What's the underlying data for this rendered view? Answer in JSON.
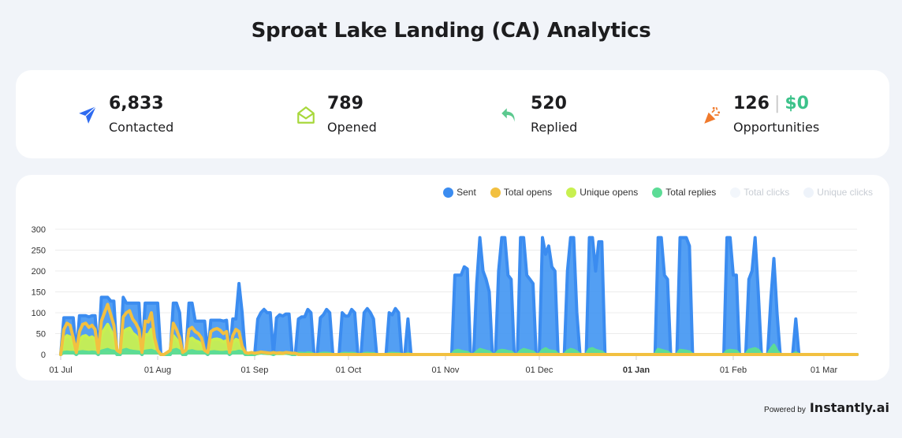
{
  "title": "Sproat Lake Landing (CA) Analytics",
  "stats": [
    {
      "value": "6,833",
      "label": "Contacted",
      "icon": "paper-plane-icon",
      "color": "#2f6bf0"
    },
    {
      "value": "789",
      "label": "Opened",
      "icon": "open-envelope-icon",
      "color": "#a8d83c"
    },
    {
      "value": "520",
      "label": "Replied",
      "icon": "reply-arrow-icon",
      "color": "#5cc98f"
    },
    {
      "value": "126",
      "separator": "|",
      "money": "$0",
      "label": "Opportunities",
      "icon": "party-popper-icon",
      "color": "#f07a2c"
    }
  ],
  "legend": [
    {
      "label": "Sent",
      "color": "#3b8cf0",
      "active": true
    },
    {
      "label": "Total opens",
      "color": "#f2c040",
      "active": true
    },
    {
      "label": "Unique opens",
      "color": "#c8f050",
      "active": true
    },
    {
      "label": "Total replies",
      "color": "#5cdc96",
      "active": true
    },
    {
      "label": "Total clicks",
      "color": "#f2f6fb",
      "active": false
    },
    {
      "label": "Unique clicks",
      "color": "#eef3fa",
      "active": false
    }
  ],
  "footer": {
    "powered_by": "Powered by",
    "brand": "Instantly.ai"
  },
  "chart_data": {
    "type": "area",
    "x_start": "01 Jul",
    "x_unit": "day",
    "num_days": 256,
    "ylim": [
      0,
      300
    ],
    "yticks": [
      0,
      50,
      100,
      150,
      200,
      250,
      300
    ],
    "xticks": [
      {
        "label": "01 Jul",
        "day": 0,
        "bold": false
      },
      {
        "label": "01 Aug",
        "day": 31,
        "bold": false
      },
      {
        "label": "01 Sep",
        "day": 62,
        "bold": false
      },
      {
        "label": "01 Oct",
        "day": 92,
        "bold": false
      },
      {
        "label": "01 Nov",
        "day": 123,
        "bold": false
      },
      {
        "label": "01 Dec",
        "day": 153,
        "bold": false
      },
      {
        "label": "01 Jan",
        "day": 184,
        "bold": true
      },
      {
        "label": "01 Feb",
        "day": 215,
        "bold": false
      },
      {
        "label": "01 Mar",
        "day": 244,
        "bold": false
      }
    ],
    "grid": true,
    "legend_position": "top-right",
    "series": [
      {
        "name": "Sent",
        "color": "#3b8cf0",
        "fill": "#4a9af2",
        "values": [
          0,
          88,
          88,
          88,
          88,
          0,
          93,
          93,
          93,
          90,
          93,
          93,
          0,
          137,
          137,
          137,
          128,
          128,
          0,
          0,
          137,
          123,
          123,
          123,
          123,
          123,
          0,
          123,
          123,
          123,
          123,
          123,
          0,
          0,
          0,
          0,
          123,
          123,
          100,
          0,
          0,
          123,
          123,
          80,
          80,
          80,
          80,
          0,
          82,
          82,
          82,
          82,
          80,
          82,
          0,
          85,
          85,
          170,
          100,
          0,
          0,
          0,
          0,
          85,
          100,
          108,
          100,
          100,
          0,
          88,
          95,
          92,
          97,
          97,
          0,
          0,
          85,
          90,
          90,
          108,
          100,
          0,
          0,
          88,
          95,
          108,
          100,
          0,
          0,
          0,
          100,
          92,
          92,
          108,
          100,
          0,
          0,
          100,
          110,
          100,
          85,
          0,
          0,
          0,
          0,
          100,
          95,
          110,
          100,
          0,
          0,
          85,
          0,
          0,
          0,
          0,
          0,
          0,
          0,
          0,
          0,
          0,
          0,
          0,
          0,
          0,
          190,
          190,
          190,
          210,
          205,
          0,
          0,
          170,
          280,
          200,
          180,
          150,
          0,
          0,
          200,
          280,
          280,
          190,
          180,
          0,
          0,
          280,
          280,
          190,
          180,
          170,
          0,
          0,
          280,
          240,
          260,
          210,
          200,
          0,
          0,
          0,
          200,
          280,
          280,
          100,
          0,
          0,
          0,
          280,
          280,
          200,
          270,
          270,
          0,
          0,
          0,
          0,
          0,
          0,
          0,
          0,
          0,
          0,
          0,
          0,
          0,
          0,
          0,
          0,
          0,
          280,
          280,
          190,
          180,
          0,
          0,
          0,
          280,
          280,
          280,
          260,
          0,
          0,
          0,
          0,
          0,
          0,
          0,
          0,
          0,
          0,
          0,
          280,
          280,
          190,
          190,
          0,
          0,
          0,
          180,
          200,
          280,
          150,
          0,
          0,
          0,
          130,
          230,
          100,
          0,
          0,
          0,
          0,
          0,
          85,
          0,
          0,
          0,
          0,
          0,
          0,
          0,
          0,
          0,
          0,
          0,
          0,
          0,
          0,
          0,
          0,
          0,
          0,
          0,
          0
        ]
      },
      {
        "name": "Unique opens",
        "color": "#c8f050",
        "fill": "#c8f050",
        "values": [
          0,
          36,
          45,
          42,
          24,
          3,
          33,
          43,
          45,
          39,
          42,
          36,
          3,
          48,
          60,
          72,
          57,
          42,
          6,
          3,
          54,
          60,
          63,
          51,
          45,
          36,
          3,
          48,
          47,
          60,
          24,
          6,
          0,
          0,
          3,
          6,
          45,
          36,
          24,
          3,
          6,
          36,
          39,
          33,
          30,
          24,
          6,
          3,
          33,
          36,
          37,
          35,
          30,
          33,
          3,
          27,
          36,
          33,
          12,
          3,
          2,
          3,
          2,
          2,
          4,
          3,
          2,
          2,
          3,
          2,
          2,
          2,
          3,
          2,
          2,
          2
        ]
      },
      {
        "name": "Total replies",
        "color": "#5cdc96",
        "fill": "#5cdc96",
        "values": [
          0,
          5,
          6,
          5,
          5,
          0,
          6,
          7,
          6,
          5,
          6,
          5,
          0,
          8,
          10,
          12,
          9,
          8,
          0,
          0,
          10,
          12,
          9,
          8,
          7,
          6,
          0,
          8,
          9,
          10,
          7,
          6,
          0,
          0,
          0,
          0,
          10,
          12,
          8,
          0,
          0,
          8,
          9,
          7,
          6,
          6,
          5,
          0,
          6,
          7,
          6,
          5,
          5,
          6,
          0,
          5,
          6,
          8,
          6,
          0,
          0,
          0,
          0,
          3,
          4,
          3,
          3,
          2,
          0,
          3,
          3,
          4,
          3,
          2,
          0,
          0,
          3,
          3,
          2,
          4,
          3,
          0,
          0,
          2,
          3,
          3,
          2,
          0,
          0,
          0,
          2,
          3,
          2,
          3,
          2,
          0,
          0,
          2,
          3,
          2,
          2,
          0,
          0,
          0,
          0,
          2,
          3,
          2,
          2,
          0,
          0,
          2,
          0,
          0,
          0,
          0,
          0,
          0,
          0,
          0,
          0,
          0,
          0,
          0,
          0,
          0,
          8,
          10,
          8,
          6,
          5,
          0,
          0,
          6,
          12,
          10,
          8,
          6,
          0,
          0,
          8,
          10,
          9,
          7,
          6,
          0,
          0,
          8,
          12,
          10,
          8,
          6,
          0,
          0,
          10,
          14,
          9,
          8,
          7,
          0,
          0,
          0,
          8,
          12,
          10,
          6,
          0,
          0,
          0,
          12,
          14,
          10,
          8,
          6,
          0,
          0,
          0,
          0,
          0,
          0,
          0,
          0,
          0,
          0,
          0,
          0,
          0,
          0,
          0,
          0,
          0,
          12,
          10,
          8,
          6,
          0,
          0,
          0,
          10,
          9,
          8,
          6,
          0,
          0,
          0,
          0,
          0,
          0,
          0,
          0,
          0,
          0,
          0,
          8,
          10,
          9,
          8,
          0,
          0,
          0,
          10,
          12,
          14,
          10,
          0,
          0,
          0,
          12,
          22,
          8,
          0,
          0,
          0,
          0,
          0,
          4
        ]
      },
      {
        "name": "Total opens",
        "color": "#f2c040",
        "fill": "none",
        "values": [
          0,
          60,
          75,
          70,
          40,
          5,
          55,
          72,
          75,
          65,
          70,
          60,
          5,
          80,
          100,
          120,
          95,
          70,
          10,
          5,
          90,
          100,
          105,
          85,
          75,
          60,
          5,
          80,
          78,
          100,
          40,
          10,
          0,
          0,
          5,
          10,
          75,
          60,
          40,
          5,
          10,
          60,
          65,
          55,
          50,
          40,
          10,
          5,
          55,
          60,
          62,
          58,
          50,
          55,
          5,
          45,
          60,
          55,
          20,
          5,
          3,
          5,
          3,
          4,
          6,
          5,
          4,
          3,
          5,
          3,
          4,
          3,
          5,
          4,
          3,
          3
        ]
      }
    ]
  }
}
